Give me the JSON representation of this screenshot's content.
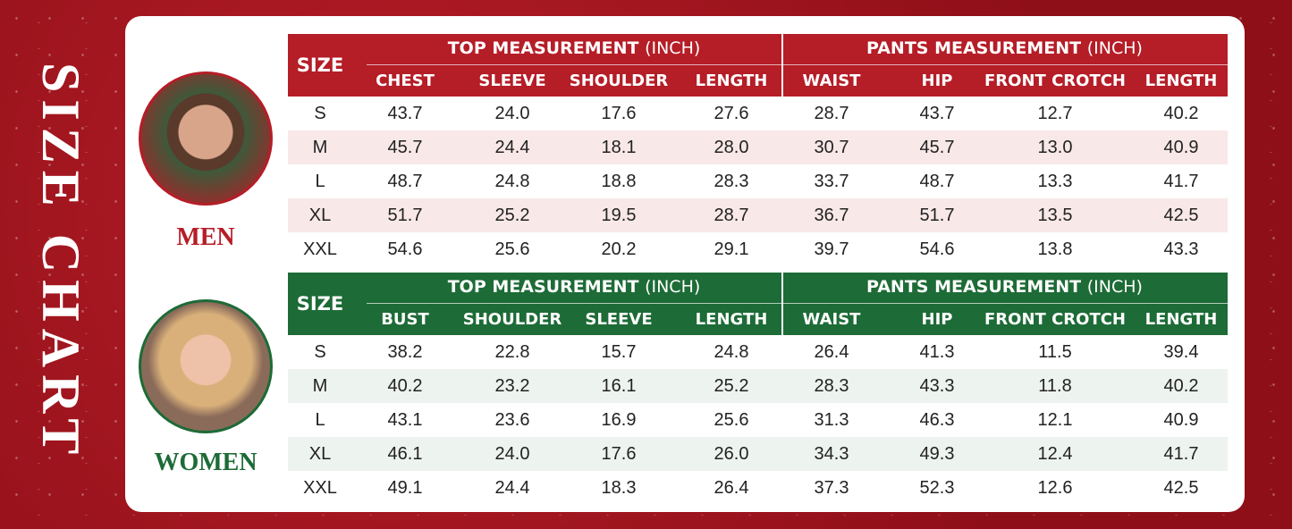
{
  "title": "SIZE CHART",
  "sections": [
    {
      "label": "MEN",
      "size_header": "SIZE",
      "groups": [
        {
          "title": "TOP MEASUREMENT",
          "unit": "(INCH)",
          "columns": [
            "CHEST",
            "SLEEVE",
            "SHOULDER",
            "LENGTH"
          ]
        },
        {
          "title": "PANTS MEASUREMENT",
          "unit": "(INCH)",
          "columns": [
            "WAIST",
            "HIP",
            "FRONT CROTCH",
            "LENGTH"
          ]
        }
      ],
      "rows": [
        [
          "S",
          "43.7",
          "24.0",
          "17.6",
          "27.6",
          "28.7",
          "43.7",
          "12.7",
          "40.2"
        ],
        [
          "M",
          "45.7",
          "24.4",
          "18.1",
          "28.0",
          "30.7",
          "45.7",
          "13.0",
          "40.9"
        ],
        [
          "L",
          "48.7",
          "24.8",
          "18.8",
          "28.3",
          "33.7",
          "48.7",
          "13.3",
          "41.7"
        ],
        [
          "XL",
          "51.7",
          "25.2",
          "19.5",
          "28.7",
          "36.7",
          "51.7",
          "13.5",
          "42.5"
        ],
        [
          "XXL",
          "54.6",
          "25.6",
          "20.2",
          "29.1",
          "39.7",
          "54.6",
          "13.8",
          "43.3"
        ]
      ]
    },
    {
      "label": "WOMEN",
      "size_header": "SIZE",
      "groups": [
        {
          "title": "TOP MEASUREMENT",
          "unit": "(INCH)",
          "columns": [
            "BUST",
            "SHOULDER",
            "SLEEVE",
            "LENGTH"
          ]
        },
        {
          "title": "PANTS MEASUREMENT",
          "unit": "(INCH)",
          "columns": [
            "WAIST",
            "HIP",
            "FRONT CROTCH",
            "LENGTH"
          ]
        }
      ],
      "rows": [
        [
          "S",
          "38.2",
          "22.8",
          "15.7",
          "24.8",
          "26.4",
          "41.3",
          "11.5",
          "39.4"
        ],
        [
          "M",
          "40.2",
          "23.2",
          "16.1",
          "25.2",
          "28.3",
          "43.3",
          "11.8",
          "40.2"
        ],
        [
          "L",
          "43.1",
          "23.6",
          "16.9",
          "25.6",
          "31.3",
          "46.3",
          "12.1",
          "40.9"
        ],
        [
          "XL",
          "46.1",
          "24.0",
          "17.6",
          "26.0",
          "34.3",
          "49.3",
          "12.4",
          "41.7"
        ],
        [
          "XXL",
          "49.1",
          "24.4",
          "18.3",
          "26.4",
          "37.3",
          "52.3",
          "12.6",
          "42.5"
        ]
      ]
    }
  ]
}
